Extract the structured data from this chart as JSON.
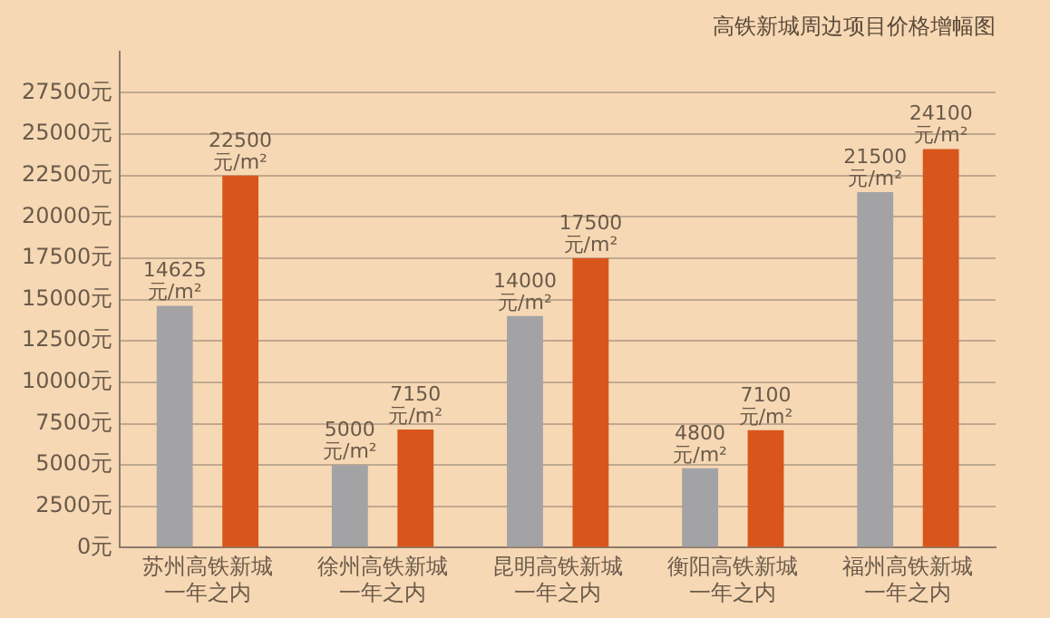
{
  "chart_data": {
    "type": "bar",
    "title": "高铁新城周边项目价格增幅图",
    "categories": [
      "苏州高铁新城一年之内",
      "徐州高铁新城一年之内",
      "昆明高铁新城一年之内",
      "衡阳高铁新城一年之内",
      "福州高铁新城一年之内"
    ],
    "series": [
      {
        "color": "#a3a3a5",
        "values": [
          14625,
          5000,
          14000,
          4800,
          21500
        ],
        "value_labels": [
          "14625\n元/m²",
          "5000\n元/m²",
          "14000\n元/m²",
          "4800\n元/m²",
          "21500\n元/m²"
        ]
      },
      {
        "color": "#d8561c",
        "values": [
          22500,
          7150,
          17500,
          7100,
          24100
        ],
        "value_labels": [
          "22500\n元/m²",
          "7150\n元/m²",
          "17500\n元/m²",
          "7100\n元/m²",
          "24100\n元/m²"
        ]
      }
    ],
    "ylim": [
      0,
      30000
    ],
    "yticks": [
      {
        "value": 0,
        "label": "0元"
      },
      {
        "value": 2500,
        "label": "2500元"
      },
      {
        "value": 5000,
        "label": "5000元"
      },
      {
        "value": 7500,
        "label": "7500元"
      },
      {
        "value": 10000,
        "label": "10000元"
      },
      {
        "value": 12500,
        "label": "12500元"
      },
      {
        "value": 15000,
        "label": "15000元"
      },
      {
        "value": 17500,
        "label": "17500元"
      },
      {
        "value": 20000,
        "label": "20000元"
      },
      {
        "value": 22500,
        "label": "22500元"
      },
      {
        "value": 25000,
        "label": "25000元"
      },
      {
        "value": 27500,
        "label": "27500元"
      }
    ],
    "grid": "y",
    "legend": false
  }
}
